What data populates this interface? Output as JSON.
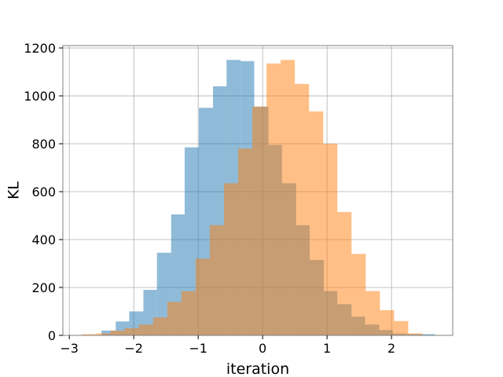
{
  "chart_data": {
    "type": "bar",
    "title": "",
    "xlabel": "iteration",
    "ylabel": "KL",
    "xlim": [
      -3.1,
      2.95
    ],
    "ylim": [
      0,
      1210
    ],
    "xticks": [
      -3,
      -2,
      -1,
      0,
      1,
      2
    ],
    "xtick_labels": [
      "−3",
      "−2",
      "−1",
      "0",
      "1",
      "2"
    ],
    "yticks": [
      0,
      200,
      400,
      600,
      800,
      1000,
      1200
    ],
    "ytick_labels": [
      "0",
      "200",
      "400",
      "600",
      "800",
      "1000",
      "1200"
    ],
    "grid": true,
    "legend": "none",
    "series": [
      {
        "color": "#1f77b4",
        "alpha": 0.5,
        "bins": [
          [
            -2.5,
            -2.28,
            20
          ],
          [
            -2.28,
            -2.07,
            58
          ],
          [
            -2.07,
            -1.85,
            100
          ],
          [
            -1.85,
            -1.64,
            190
          ],
          [
            -1.64,
            -1.42,
            345
          ],
          [
            -1.42,
            -1.21,
            505
          ],
          [
            -1.21,
            -0.99,
            785
          ],
          [
            -0.99,
            -0.77,
            950
          ],
          [
            -0.77,
            -0.56,
            1040
          ],
          [
            -0.56,
            -0.34,
            1150
          ],
          [
            -0.34,
            -0.13,
            1145
          ],
          [
            -0.13,
            0.09,
            955
          ],
          [
            0.09,
            0.3,
            795
          ],
          [
            0.3,
            0.52,
            635
          ],
          [
            0.52,
            0.73,
            460
          ],
          [
            0.73,
            0.95,
            315
          ],
          [
            0.95,
            1.16,
            185
          ],
          [
            1.16,
            1.38,
            130
          ],
          [
            1.38,
            1.59,
            78
          ],
          [
            1.59,
            1.81,
            45
          ],
          [
            1.81,
            2.02,
            22
          ],
          [
            2.02,
            2.24,
            8
          ],
          [
            2.24,
            2.45,
            5
          ],
          [
            2.45,
            2.67,
            5
          ]
        ]
      },
      {
        "color": "#ff7f0e",
        "alpha": 0.5,
        "bins": [
          [
            -2.81,
            -2.58,
            5
          ],
          [
            -2.58,
            -2.36,
            8
          ],
          [
            -2.36,
            -2.14,
            20
          ],
          [
            -2.14,
            -1.92,
            30
          ],
          [
            -1.92,
            -1.7,
            45
          ],
          [
            -1.7,
            -1.48,
            75
          ],
          [
            -1.48,
            -1.26,
            140
          ],
          [
            -1.26,
            -1.04,
            185
          ],
          [
            -1.04,
            -0.82,
            320
          ],
          [
            -0.82,
            -0.6,
            460
          ],
          [
            -0.6,
            -0.38,
            635
          ],
          [
            -0.38,
            -0.16,
            780
          ],
          [
            -0.16,
            0.06,
            955
          ],
          [
            0.06,
            0.28,
            1135
          ],
          [
            0.28,
            0.5,
            1150
          ],
          [
            0.5,
            0.72,
            1050
          ],
          [
            0.72,
            0.94,
            935
          ],
          [
            0.94,
            1.16,
            800
          ],
          [
            1.16,
            1.38,
            515
          ],
          [
            1.38,
            1.6,
            340
          ],
          [
            1.6,
            1.82,
            185
          ],
          [
            1.82,
            2.04,
            105
          ],
          [
            2.04,
            2.26,
            60
          ],
          [
            2.26,
            2.48,
            8
          ]
        ]
      }
    ]
  }
}
